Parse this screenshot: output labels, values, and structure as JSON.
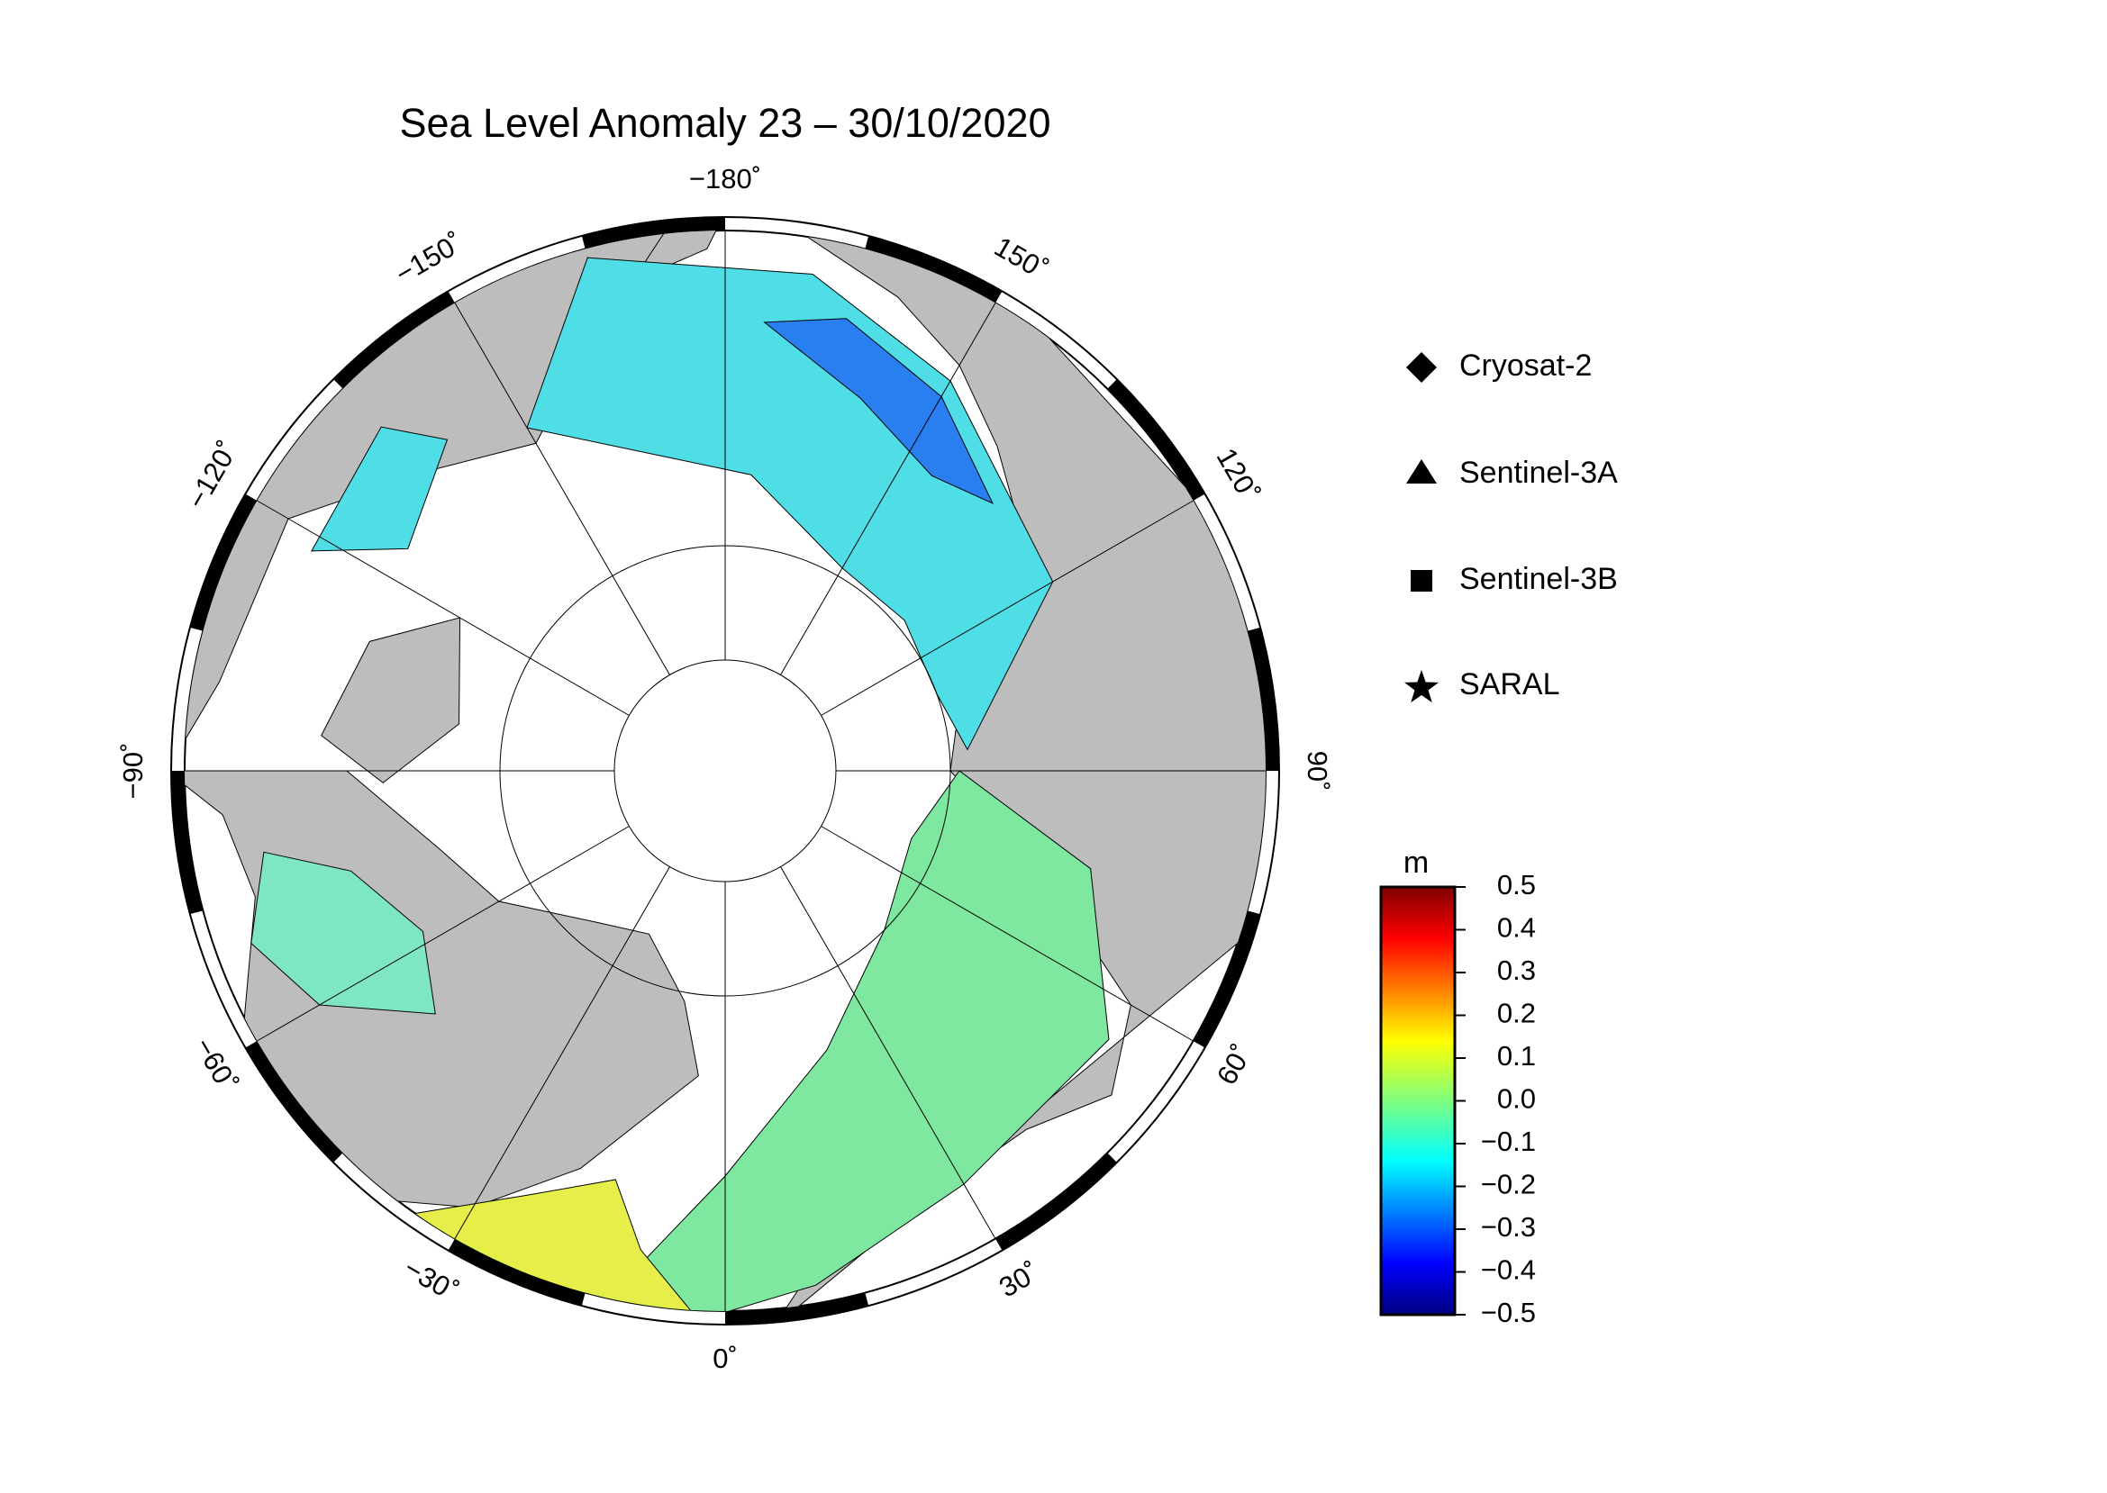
{
  "title": "Sea Level Anomaly 23 – 30/10/2020",
  "map": {
    "longitude_labels": [
      {
        "value": -180,
        "label": "−180˚"
      },
      {
        "value": 150,
        "label": "150˚"
      },
      {
        "value": 120,
        "label": "120˚"
      },
      {
        "value": 90,
        "label": "90˚"
      },
      {
        "value": 60,
        "label": "60˚"
      },
      {
        "value": 30,
        "label": "30˚"
      },
      {
        "value": 0,
        "label": "0˚"
      },
      {
        "value": -30,
        "label": "−30˚"
      },
      {
        "value": -60,
        "label": "−60˚"
      },
      {
        "value": -90,
        "label": "−90˚"
      },
      {
        "value": -120,
        "label": "−120˚"
      },
      {
        "value": -150,
        "label": "−150˚"
      }
    ]
  },
  "legend": [
    "Cryosat-2",
    "Sentinel-3A",
    "Sentinel-3B",
    "SARAL"
  ],
  "colorbar": {
    "unit": "m",
    "lim": [
      -0.5,
      0.5
    ],
    "ticks": [
      0.5,
      0.4,
      0.3,
      0.2,
      0.1,
      {
        "value": 0.0,
        "label": "0.0"
      },
      {
        "value": -0.1,
        "label": "−0.1"
      },
      {
        "value": -0.2,
        "label": "−0.2"
      },
      {
        "value": -0.3,
        "label": "−0.3"
      },
      {
        "value": -0.4,
        "label": "−0.4"
      },
      {
        "value": -0.5,
        "label": "−0.5"
      }
    ]
  }
}
